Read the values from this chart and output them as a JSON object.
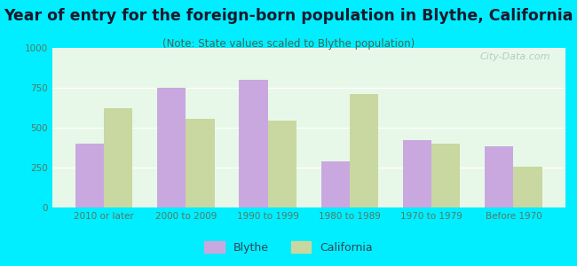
{
  "title": "Year of entry for the foreign-born population in Blythe, California",
  "subtitle": "(Note: State values scaled to Blythe population)",
  "categories": [
    "2010 or later",
    "2000 to 2009",
    "1990 to 1999",
    "1980 to 1989",
    "1970 to 1979",
    "Before 1970"
  ],
  "blythe_values": [
    400,
    750,
    800,
    290,
    420,
    385
  ],
  "california_values": [
    620,
    555,
    545,
    710,
    400,
    255
  ],
  "blythe_color": "#c9a8e0",
  "california_color": "#c8d8a0",
  "background_outer": "#00eeff",
  "background_inner_top": "#e8f8e8",
  "background_inner_bottom": "#f8fff8",
  "ylim": [
    0,
    1000
  ],
  "yticks": [
    0,
    250,
    500,
    750,
    1000
  ],
  "bar_width": 0.35,
  "title_fontsize": 12.5,
  "subtitle_fontsize": 8.5,
  "tick_fontsize": 7.5,
  "legend_fontsize": 9,
  "tick_color": "#557766",
  "watermark": "City-Data.com"
}
